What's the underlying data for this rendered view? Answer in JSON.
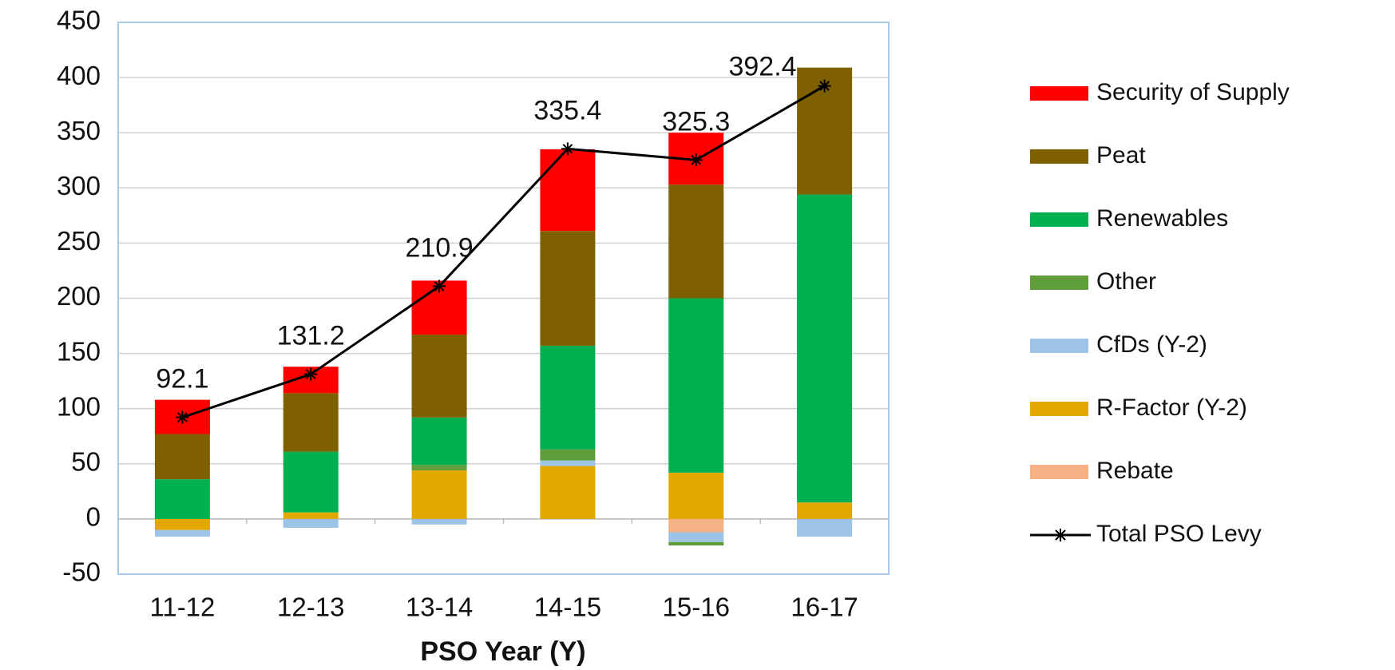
{
  "chart_data": {
    "type": "bar",
    "stacked": true,
    "x_label": "PSO Year (Y)",
    "categories": [
      "11-12",
      "12-13",
      "13-14",
      "14-15",
      "15-16",
      "16-17"
    ],
    "series": [
      {
        "name": "Security of Supply",
        "color": "#ff0000",
        "values": [
          31,
          24,
          49,
          74,
          47,
          0
        ]
      },
      {
        "name": "Peat",
        "color": "#7f6000",
        "values": [
          41,
          53,
          75,
          104,
          103,
          115
        ]
      },
      {
        "name": "Renewables",
        "color": "#00b050",
        "values": [
          36,
          55,
          43,
          94,
          158,
          279
        ]
      },
      {
        "name": "Other",
        "color": "#5f9e3a",
        "values": [
          0,
          0,
          5,
          10,
          -3,
          0
        ]
      },
      {
        "name": "CfDs (Y-2)",
        "color": "#9dc3e6",
        "values": [
          -6,
          -8,
          -5,
          5,
          -9,
          -16
        ]
      },
      {
        "name": "R-Factor (Y-2)",
        "color": "#e2a800",
        "values": [
          -10,
          6,
          44,
          48,
          42,
          15
        ]
      },
      {
        "name": "Rebate",
        "color": "#f4b183",
        "values": [
          0,
          0,
          0,
          0,
          -12,
          0
        ]
      },
      {
        "name": "Total PSO Levy",
        "type": "line",
        "color": "#000000",
        "values": [
          92.1,
          131.2,
          210.9,
          335.4,
          325.3,
          392.4
        ]
      }
    ],
    "ylim": [
      -50,
      450
    ],
    "yticks": [
      -50,
      0,
      50,
      100,
      150,
      200,
      250,
      300,
      350,
      400,
      450
    ],
    "grid": true,
    "legend": "right"
  }
}
